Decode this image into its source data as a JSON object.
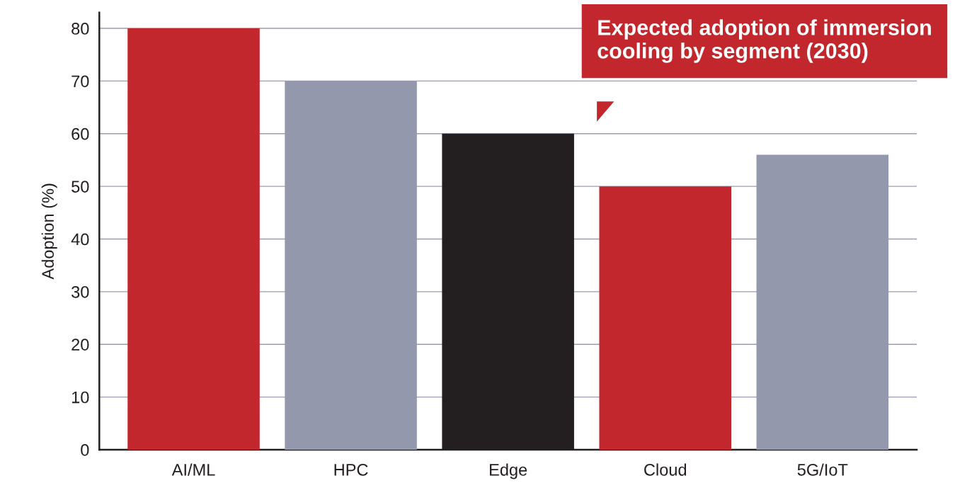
{
  "chart_data": {
    "type": "bar",
    "title": "Expected adoption of immersion\ncooling by segment (2030)",
    "ylabel": "Adoption (%)",
    "categories": [
      "AI/ML",
      "HPC",
      "Edge",
      "Cloud",
      "5G/IoT"
    ],
    "values": [
      80,
      70,
      60,
      50,
      56
    ],
    "colors": [
      "#c1272d",
      "#9398ad",
      "#231f20",
      "#c1272d",
      "#9398ad"
    ],
    "ylim": [
      0,
      83
    ],
    "yticks": [
      0,
      10,
      20,
      30,
      40,
      50,
      60,
      70,
      80
    ],
    "grid": "y"
  }
}
